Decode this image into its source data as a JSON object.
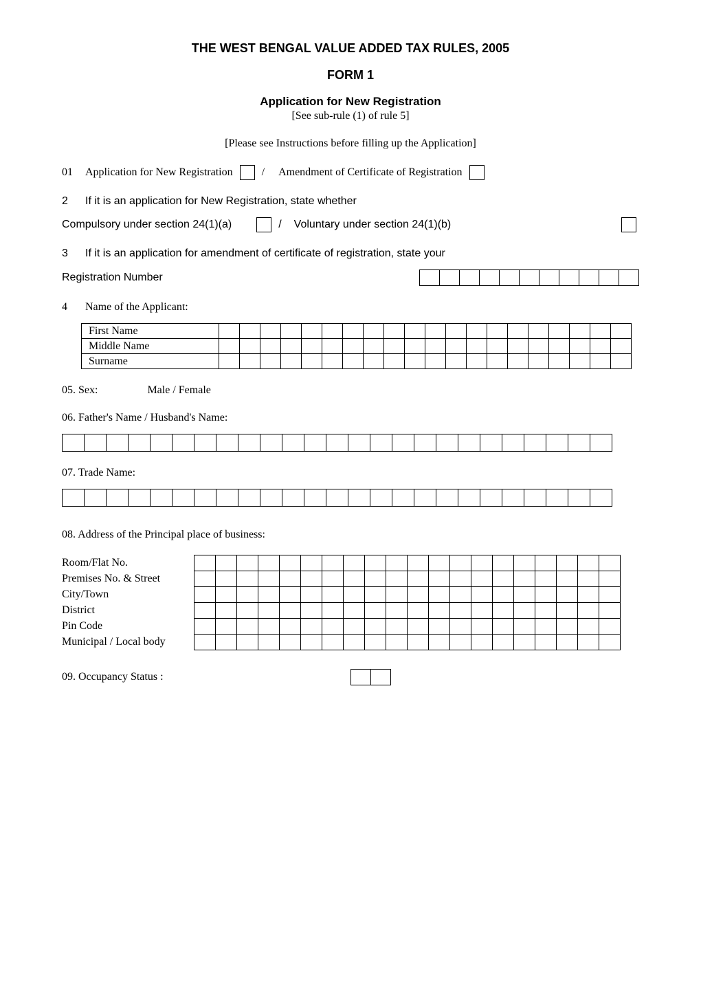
{
  "header": {
    "main_title": "THE WEST BENGAL VALUE ADDED TAX RULES, 2005",
    "form_number": "FORM 1",
    "form_title": "Application for New Registration",
    "rule_reference": "[See sub-rule (1) of rule 5]",
    "instructions": "[Please see Instructions before filling up the Application]"
  },
  "item01": {
    "number": "01",
    "option1_label": "Application for New Registration",
    "separator": "/",
    "option2_label": "Amendment of Certificate of Registration"
  },
  "item02": {
    "number": "2",
    "label": "If it is an application for New Registration, state whether",
    "option1_label": "Compulsory under section 24(1)(a)",
    "separator": "/",
    "option2_label": "Voluntary under section 24(1)(b)"
  },
  "item03": {
    "number": "3",
    "label": "If it is an application for amendment of certificate of registration, state your",
    "reg_label": "Registration Number"
  },
  "item04": {
    "number": "4",
    "label": "Name of the Applicant:",
    "rows": {
      "first": "First Name",
      "middle": "Middle Name",
      "surname": "Surname"
    }
  },
  "item05": {
    "label": "05. Sex:",
    "options": "Male / Female"
  },
  "item06": {
    "label": "06. Father's Name / Husband's Name:"
  },
  "item07": {
    "label": "07. Trade Name:"
  },
  "item08": {
    "label": "08. Address of the Principal place of business:",
    "fields": {
      "room": "Room/Flat No.",
      "premises": "Premises No. & Street",
      "city": "City/Town",
      "district": "District",
      "pin": "Pin Code",
      "municipal": "Municipal / Local body"
    }
  },
  "item09": {
    "label": "09. Occupancy Status :"
  },
  "layout": {
    "reg_cells": 11,
    "name_cells": 20,
    "full_grid_cells": 25,
    "addr_cells": 20,
    "occupancy_cells": 2
  }
}
